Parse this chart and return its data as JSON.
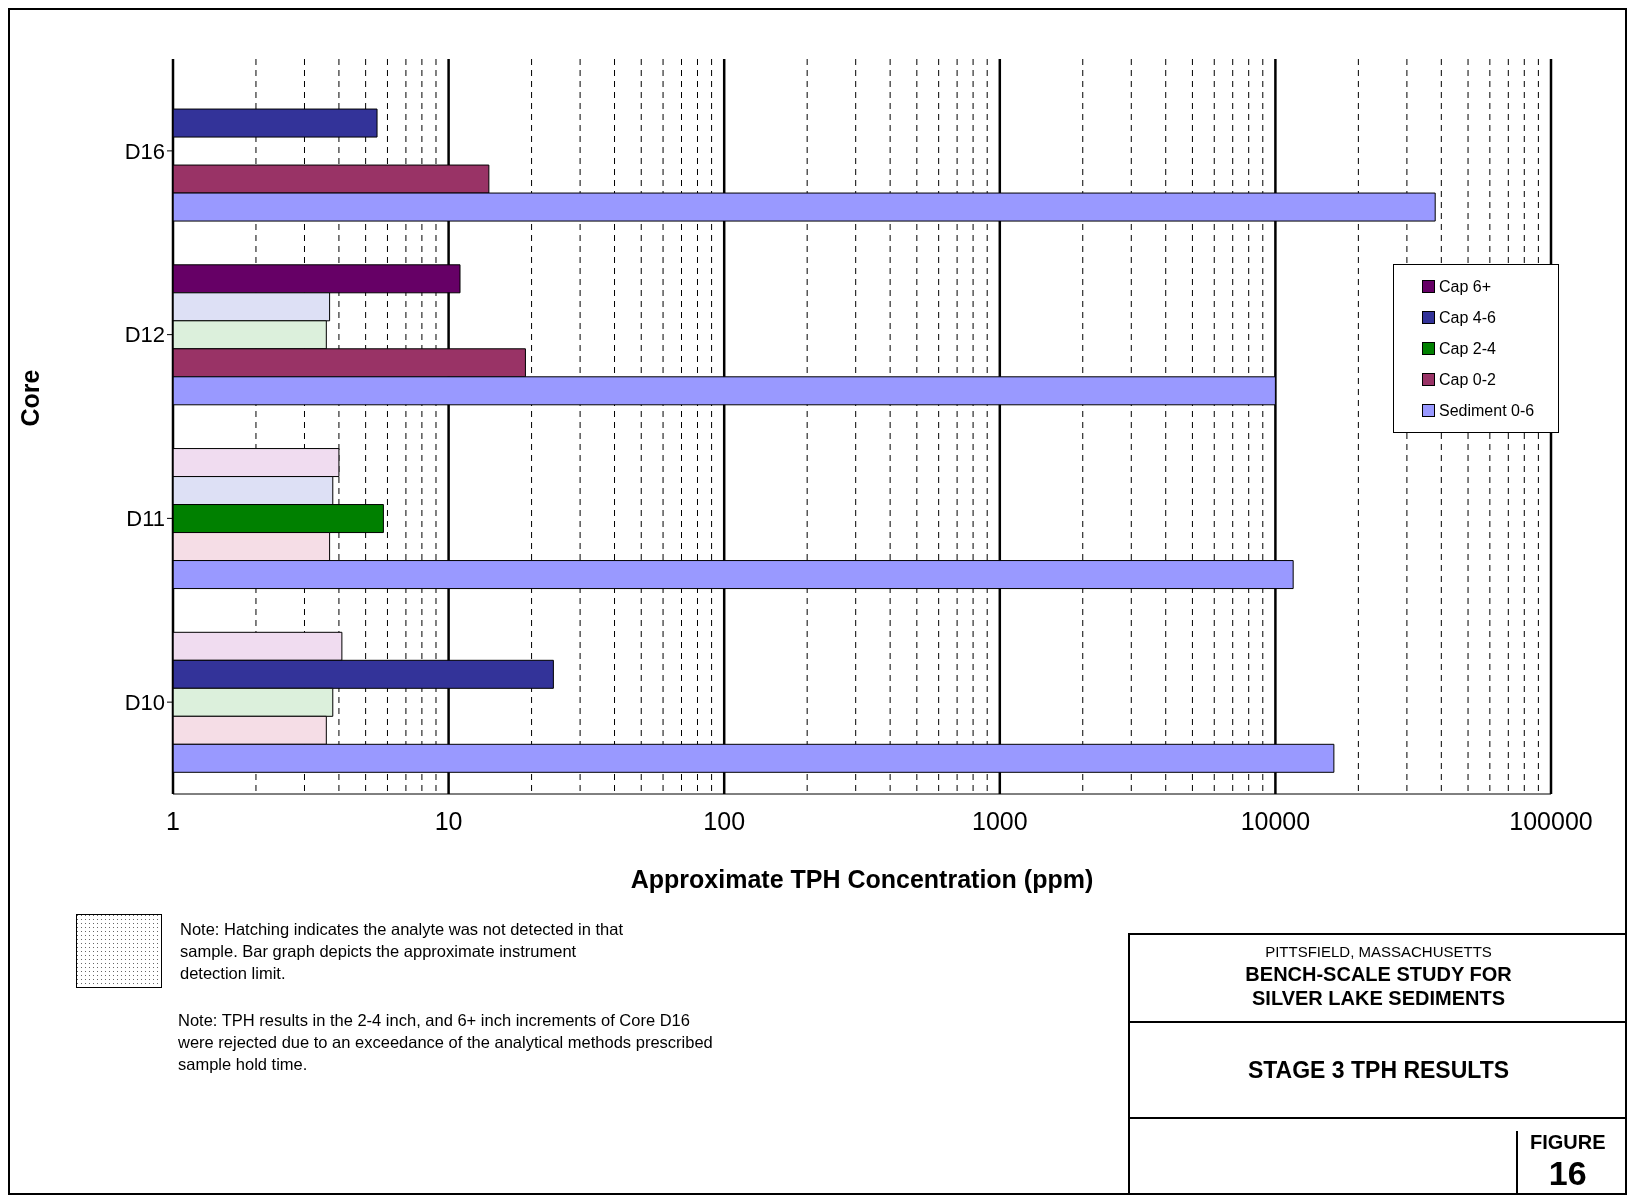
{
  "chart_data": {
    "type": "bar",
    "orientation": "horizontal",
    "title": "STAGE 3 TPH RESULTS",
    "subtitle": "BENCH-SCALE STUDY FOR SILVER LAKE SEDIMENTS",
    "xlabel": "Approximate TPH Concentration (ppm)",
    "ylabel": "Core",
    "categories": [
      "D16",
      "D12",
      "D11",
      "D10"
    ],
    "series": [
      {
        "name": "Cap 6+",
        "color": "#660066",
        "values": [
          null,
          11,
          4.0,
          4.1
        ],
        "colors": [
          "#660066",
          "#660066",
          "#f0dcf0",
          "#f0dcf0"
        ]
      },
      {
        "name": "Cap 4-6",
        "color": "#333399",
        "values": [
          5.5,
          3.7,
          3.8,
          24
        ],
        "colors": [
          "#333399",
          "#dde0f5",
          "#dde0f5",
          "#333399"
        ]
      },
      {
        "name": "Cap 2-4",
        "color": "#008000",
        "values": [
          null,
          3.6,
          5.8,
          3.8
        ],
        "colors": [
          "#008000",
          "#dcf0dc",
          "#008000",
          "#dcf0dc"
        ]
      },
      {
        "name": "Cap 0-2",
        "color": "#993366",
        "values": [
          14,
          19,
          3.7,
          3.6
        ],
        "colors": [
          "#993366",
          "#993366",
          "#f5dde6",
          "#f5dde6"
        ]
      },
      {
        "name": "Sediment 0-6",
        "color": "#9999ff",
        "values": [
          38000,
          10000,
          11600,
          16300
        ]
      }
    ],
    "log": "x",
    "xlim": [
      1,
      100000
    ],
    "xticks": [
      1,
      {
        "value": 2,
        "label": null
      },
      {
        "value": 3,
        "label": null
      },
      {
        "value": 4,
        "label": null
      },
      {
        "value": 5,
        "label": null
      },
      {
        "value": 6,
        "label": null
      },
      {
        "value": 7,
        "label": null
      },
      {
        "value": 8,
        "label": null
      },
      {
        "value": 9,
        "label": null
      },
      10,
      {
        "value": 20,
        "label": null
      },
      {
        "value": 30,
        "label": null
      },
      {
        "value": 40,
        "label": null
      },
      {
        "value": 50,
        "label": null
      },
      {
        "value": 60,
        "label": null
      },
      {
        "value": 70,
        "label": null
      },
      {
        "value": 80,
        "label": null
      },
      {
        "value": 90,
        "label": null
      },
      100,
      {
        "value": 200,
        "label": null
      },
      {
        "value": 300,
        "label": null
      },
      {
        "value": 400,
        "label": null
      },
      {
        "value": 500,
        "label": null
      },
      {
        "value": 600,
        "label": null
      },
      {
        "value": 700,
        "label": null
      },
      {
        "value": 800,
        "label": null
      },
      {
        "value": 900,
        "label": null
      },
      1000,
      {
        "value": 2000,
        "label": null
      },
      {
        "value": 3000,
        "label": null
      },
      {
        "value": 4000,
        "label": null
      },
      {
        "value": 5000,
        "label": null
      },
      {
        "value": 6000,
        "label": null
      },
      {
        "value": 7000,
        "label": null
      },
      {
        "value": 8000,
        "label": null
      },
      {
        "value": 9000,
        "label": null
      },
      10000,
      {
        "value": 20000,
        "label": null
      },
      {
        "value": 30000,
        "label": null
      },
      {
        "value": 40000,
        "label": null
      },
      {
        "value": 50000,
        "label": null
      },
      {
        "value": 60000,
        "label": null
      },
      {
        "value": 70000,
        "label": null
      },
      {
        "value": 80000,
        "label": null
      },
      {
        "value": 90000,
        "label": null
      },
      100000
    ],
    "grid": "x",
    "legend": "right",
    "annotations": [
      "Note:  Hatching indicates the analyte was not detected in that sample.  Bar graph depicts the approximate instrument detection limit.",
      "Note:  TPH results in the 2-4 inch, and 6+ inch increments of Core D16 were rejected due to an exceedance of the analytical methods prescribed sample hold time.",
      "PITTSFIELD, MASSACHUSETTS",
      "FIGURE",
      "16"
    ]
  }
}
